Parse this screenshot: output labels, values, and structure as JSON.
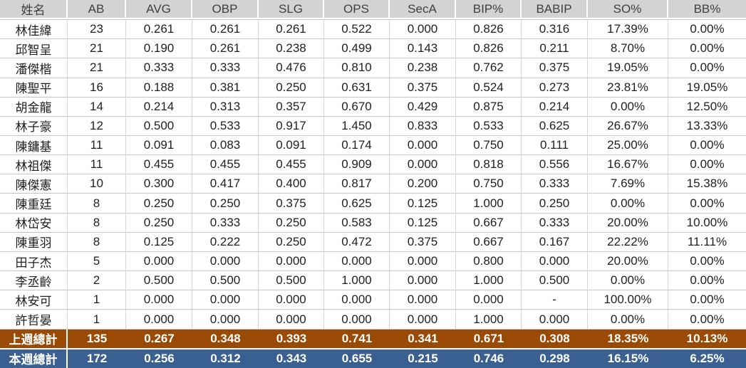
{
  "table": {
    "columns": [
      "姓名",
      "AB",
      "AVG",
      "OBP",
      "SLG",
      "OPS",
      "SecA",
      "BIP%",
      "BABIP",
      "SO%",
      "BB%"
    ],
    "rows": [
      {
        "cells": [
          "林佳緯",
          "23",
          "0.261",
          "0.261",
          "0.261",
          "0.522",
          "0.000",
          "0.826",
          "0.316",
          "17.39%",
          "0.00%"
        ]
      },
      {
        "cells": [
          "邱智呈",
          "21",
          "0.190",
          "0.261",
          "0.238",
          "0.499",
          "0.143",
          "0.826",
          "0.211",
          "8.70%",
          "0.00%"
        ]
      },
      {
        "cells": [
          "潘傑楷",
          "21",
          "0.333",
          "0.333",
          "0.476",
          "0.810",
          "0.238",
          "0.762",
          "0.375",
          "19.05%",
          "0.00%"
        ]
      },
      {
        "cells": [
          "陳聖平",
          "16",
          "0.188",
          "0.381",
          "0.250",
          "0.631",
          "0.375",
          "0.524",
          "0.273",
          "23.81%",
          "19.05%"
        ]
      },
      {
        "cells": [
          "胡金龍",
          "14",
          "0.214",
          "0.313",
          "0.357",
          "0.670",
          "0.429",
          "0.875",
          "0.214",
          "0.00%",
          "12.50%"
        ]
      },
      {
        "cells": [
          "林子豪",
          "12",
          "0.500",
          "0.533",
          "0.917",
          "1.450",
          "0.833",
          "0.533",
          "0.625",
          "26.67%",
          "13.33%"
        ]
      },
      {
        "cells": [
          "陳鏞基",
          "11",
          "0.091",
          "0.083",
          "0.091",
          "0.174",
          "0.000",
          "0.750",
          "0.111",
          "25.00%",
          "0.00%"
        ]
      },
      {
        "cells": [
          "林祖傑",
          "11",
          "0.455",
          "0.455",
          "0.455",
          "0.909",
          "0.000",
          "0.818",
          "0.556",
          "16.67%",
          "0.00%"
        ]
      },
      {
        "cells": [
          "陳傑憲",
          "10",
          "0.300",
          "0.417",
          "0.400",
          "0.817",
          "0.200",
          "0.750",
          "0.333",
          "7.69%",
          "15.38%"
        ]
      },
      {
        "cells": [
          "陳重廷",
          "8",
          "0.250",
          "0.250",
          "0.375",
          "0.625",
          "0.125",
          "1.000",
          "0.250",
          "0.00%",
          "0.00%"
        ]
      },
      {
        "cells": [
          "林岱安",
          "8",
          "0.250",
          "0.333",
          "0.250",
          "0.583",
          "0.125",
          "0.667",
          "0.333",
          "20.00%",
          "10.00%"
        ]
      },
      {
        "cells": [
          "陳重羽",
          "8",
          "0.125",
          "0.222",
          "0.250",
          "0.472",
          "0.375",
          "0.667",
          "0.167",
          "22.22%",
          "11.11%"
        ]
      },
      {
        "cells": [
          "田子杰",
          "5",
          "0.000",
          "0.000",
          "0.000",
          "0.000",
          "0.000",
          "0.800",
          "0.000",
          "20.00%",
          "0.00%"
        ]
      },
      {
        "cells": [
          "李丞齡",
          "2",
          "0.500",
          "0.500",
          "0.500",
          "1.000",
          "0.000",
          "1.000",
          "0.500",
          "0.00%",
          "0.00%"
        ]
      },
      {
        "cells": [
          "林安可",
          "1",
          "0.000",
          "0.000",
          "0.000",
          "0.000",
          "0.000",
          "0.000",
          "-",
          "100.00%",
          "0.00%"
        ]
      },
      {
        "cells": [
          "許哲晏",
          "1",
          "0.000",
          "0.000",
          "0.000",
          "0.000",
          "0.000",
          "1.000",
          "0.000",
          "0.00%",
          "0.00%"
        ]
      }
    ],
    "summary_rows": [
      {
        "label": "上週總計",
        "bg": "#9b4a06",
        "values": [
          "135",
          "0.267",
          "0.348",
          "0.393",
          "0.741",
          "0.341",
          "0.671",
          "0.308",
          "18.35%",
          "10.13%"
        ]
      },
      {
        "label": "本週總計",
        "bg": "#3a6091",
        "values": [
          "172",
          "0.256",
          "0.312",
          "0.343",
          "0.655",
          "0.215",
          "0.746",
          "0.298",
          "16.15%",
          "6.25%"
        ]
      }
    ]
  },
  "colors": {
    "header_bg": "#d3d3d3",
    "header_text": "#3f3f3f",
    "body_text": "#1f1f1f",
    "grid_line_horizontal": "#c6c6c6",
    "grid_line_vertical": "#d6d6d6",
    "last_week_total_bg": "#9b4a06",
    "this_week_total_bg": "#3a6091",
    "summary_text": "#ffffff"
  }
}
